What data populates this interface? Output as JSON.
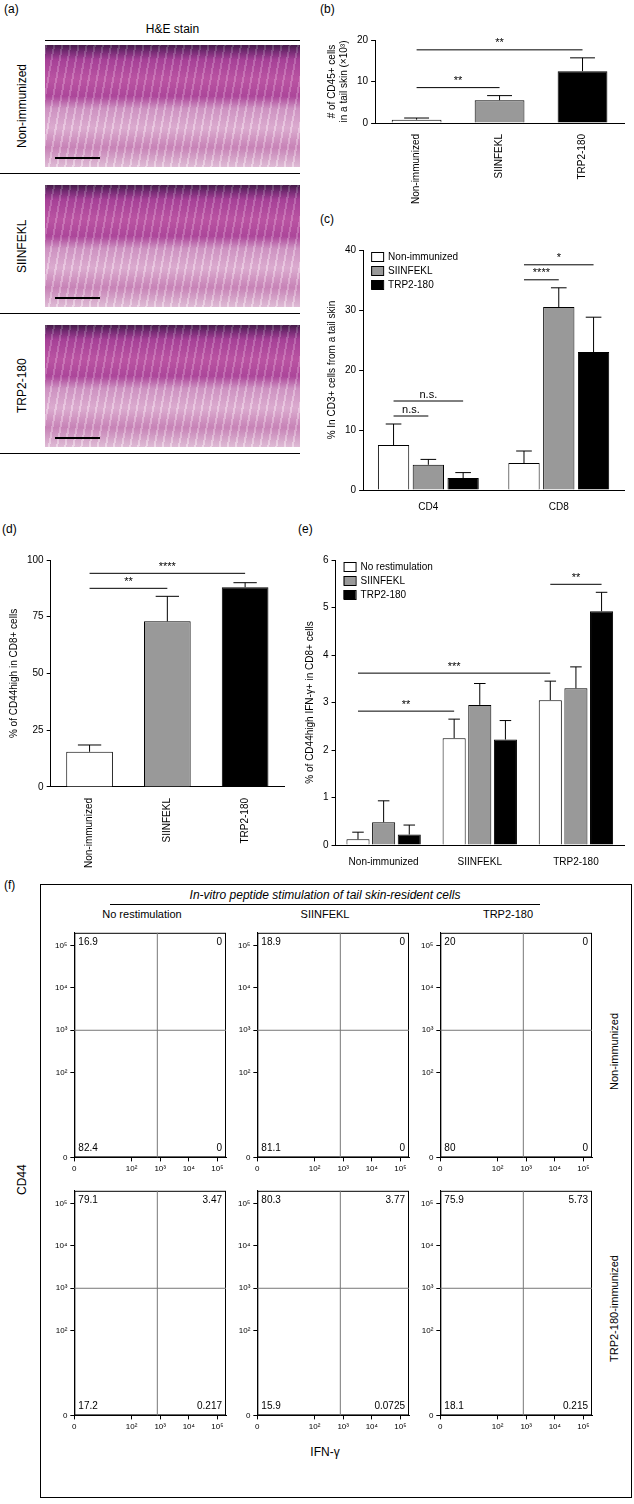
{
  "histology": {
    "panel": "(a)",
    "title": "H&E stain",
    "rows": [
      "Non-immunized",
      "SIINFEKL",
      "TRP2-180"
    ]
  },
  "chart_data": [
    {
      "panel": "(b)",
      "type": "bar",
      "categories": [
        "Non-immunized",
        "SIINFEKL",
        "TRP2-180"
      ],
      "values": [
        0.8,
        5.5,
        12.5
      ],
      "errors": [
        0.4,
        1.1,
        3.2
      ],
      "colors": [
        "#ffffff",
        "#999999",
        "#000000"
      ],
      "ylabel": [
        "# of CD45+ cells",
        "in a tail skin (×10³)"
      ],
      "ylim": [
        0,
        20
      ],
      "yticks": [
        0,
        10,
        20
      ],
      "grid": false,
      "significance": [
        {
          "from": {
            "category": "Non-immunized"
          },
          "to": {
            "category": "SIINFEKL"
          },
          "label": "**"
        },
        {
          "from": {
            "category": "Non-immunized"
          },
          "to": {
            "category": "TRP2-180"
          },
          "label": "**"
        }
      ]
    },
    {
      "panel": "(c)",
      "type": "bar",
      "categories": [
        "CD4",
        "CD8"
      ],
      "series": [
        {
          "name": "Non-immunized",
          "color": "#ffffff",
          "values": [
            7.5,
            4.5
          ],
          "errors": [
            3.5,
            2.0
          ]
        },
        {
          "name": "SIINFEKL",
          "color": "#999999",
          "values": [
            4.2,
            30.5
          ],
          "errors": [
            0.9,
            3.2
          ]
        },
        {
          "name": "TRP2-180",
          "color": "#000000",
          "values": [
            2.0,
            23.0
          ],
          "errors": [
            0.9,
            5.8
          ]
        }
      ],
      "ylabel": "% In CD3+ cells from a tail skin",
      "ylim": [
        0,
        40
      ],
      "yticks": [
        0,
        10,
        20,
        30,
        40
      ],
      "grid": false,
      "legend": "top-left",
      "significance": [
        {
          "from": {
            "category": "CD4",
            "series": "Non-immunized"
          },
          "to": {
            "category": "CD4",
            "series": "SIINFEKL"
          },
          "label": "n.s."
        },
        {
          "from": {
            "category": "CD4",
            "series": "Non-immunized"
          },
          "to": {
            "category": "CD4",
            "series": "TRP2-180"
          },
          "label": "n.s."
        },
        {
          "from": {
            "category": "CD8",
            "series": "Non-immunized"
          },
          "to": {
            "category": "CD8",
            "series": "SIINFEKL"
          },
          "label": "****"
        },
        {
          "from": {
            "category": "CD8",
            "series": "Non-immunized"
          },
          "to": {
            "category": "CD8",
            "series": "TRP2-180"
          },
          "label": "*"
        }
      ]
    },
    {
      "panel": "(d)",
      "type": "bar",
      "categories": [
        "Non-immunized",
        "SIINFEKL",
        "TRP2-180"
      ],
      "values": [
        15.5,
        73,
        88
      ],
      "errors": [
        3,
        11,
        2
      ],
      "colors": [
        "#ffffff",
        "#999999",
        "#000000"
      ],
      "ylabel": "% of CD44high in CD8+ cells",
      "ylim": [
        0,
        100
      ],
      "yticks": [
        0,
        25,
        50,
        75,
        100
      ],
      "grid": false,
      "significance": [
        {
          "from": {
            "category": "Non-immunized"
          },
          "to": {
            "category": "SIINFEKL"
          },
          "label": "**"
        },
        {
          "from": {
            "category": "Non-immunized"
          },
          "to": {
            "category": "TRP2-180"
          },
          "label": "****"
        }
      ]
    },
    {
      "panel": "(e)",
      "type": "bar",
      "categories": [
        "Non-immunized",
        "SIINFEKL",
        "TRP2-180"
      ],
      "series": [
        {
          "name": "No restimulation",
          "color": "#ffffff",
          "values": [
            0.12,
            2.25,
            3.05
          ],
          "errors": [
            0.15,
            0.4,
            0.4
          ]
        },
        {
          "name": "SIINFEKL",
          "color": "#999999",
          "values": [
            0.48,
            2.95,
            3.3
          ],
          "errors": [
            0.45,
            0.45,
            0.45
          ]
        },
        {
          "name": "TRP2-180",
          "color": "#000000",
          "values": [
            0.22,
            2.22,
            4.92
          ],
          "errors": [
            0.2,
            0.4,
            0.4
          ]
        }
      ],
      "ylabel": "% of CD44high IFN-γ+ in CD8+ cells",
      "ylim": [
        0,
        6
      ],
      "yticks": [
        0,
        1,
        2,
        3,
        4,
        5,
        6
      ],
      "grid": false,
      "legend": "top-left",
      "significance": [
        {
          "from": {
            "category": "Non-immunized",
            "series": "No restimulation"
          },
          "to": {
            "category": "SIINFEKL",
            "series": "No restimulation"
          },
          "label": "**"
        },
        {
          "from": {
            "category": "Non-immunized",
            "series": "No restimulation"
          },
          "to": {
            "category": "TRP2-180",
            "series": "No restimulation"
          },
          "label": "***"
        },
        {
          "from": {
            "category": "TRP2-180",
            "series": "No restimulation"
          },
          "to": {
            "category": "TRP2-180",
            "series": "TRP2-180"
          },
          "label": "**"
        }
      ]
    },
    {
      "panel": "(f)",
      "type": "scatter",
      "title": "In-vitro peptide stimulation of tail skin-resident cells",
      "columns": [
        "No restimulation",
        "SIINFEKL",
        "TRP2-180"
      ],
      "rows": [
        "Non-immunized",
        "TRP2-180-immunized"
      ],
      "xlabel": "IFN-γ",
      "ylabel": "CD44",
      "xlim": [
        0,
        5.3
      ],
      "ylim": [
        0,
        5.3
      ],
      "xticks": [
        0,
        {
          "value": 2,
          "label": "10²"
        },
        {
          "value": 3,
          "label": "10³"
        },
        {
          "value": 4,
          "label": "10⁴"
        },
        {
          "value": 5,
          "label": "10⁵"
        }
      ],
      "yticks": [
        0,
        {
          "value": 2,
          "label": "10²"
        },
        {
          "value": 3,
          "label": "10³"
        },
        {
          "value": 4,
          "label": "10⁴"
        },
        {
          "value": 5,
          "label": "10⁵"
        }
      ],
      "gates": {
        "x": 2.9,
        "y": 3.0
      },
      "quadrants": [
        [
          {
            "upper_left": 16.9,
            "upper_right": 0,
            "lower_left": 82.4,
            "lower_right": 0
          },
          {
            "upper_left": 18.9,
            "upper_right": 0,
            "lower_left": 81.1,
            "lower_right": 0
          },
          {
            "upper_left": 20,
            "upper_right": 0,
            "lower_left": 80,
            "lower_right": 0
          }
        ],
        [
          {
            "upper_left": 79.1,
            "upper_right": 3.47,
            "lower_left": 17.2,
            "lower_right": 0.217
          },
          {
            "upper_left": 80.3,
            "upper_right": 3.77,
            "lower_left": 15.9,
            "lower_right": 0.0725
          },
          {
            "upper_left": 75.9,
            "upper_right": 5.73,
            "lower_left": 18.1,
            "lower_right": 0.215
          }
        ]
      ]
    }
  ]
}
